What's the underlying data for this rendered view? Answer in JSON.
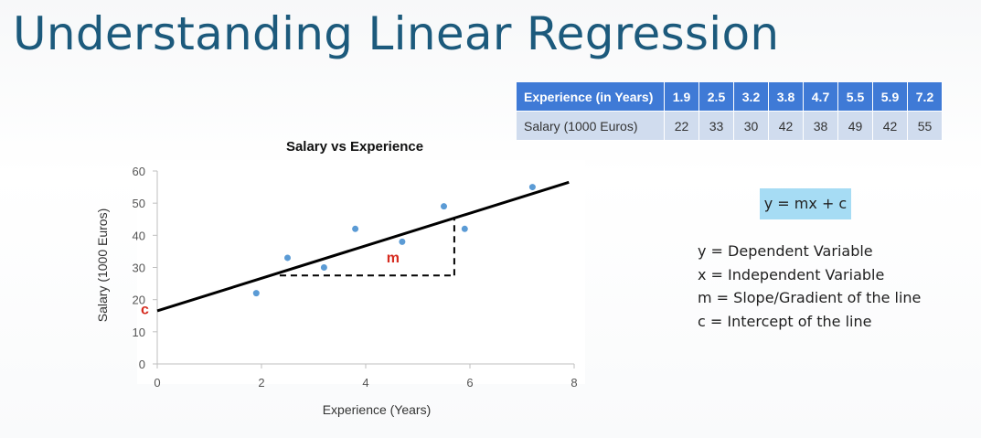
{
  "title": "Understanding Linear Regression",
  "table": {
    "row_headers": [
      "Experience (in Years)",
      "Salary (1000 Euros)"
    ],
    "experience": [
      "1.9",
      "2.5",
      "3.2",
      "3.8",
      "4.7",
      "5.5",
      "5.9",
      "7.2"
    ],
    "salary": [
      "22",
      "33",
      "30",
      "42",
      "38",
      "49",
      "42",
      "55"
    ]
  },
  "chart_data": {
    "type": "scatter",
    "title": "Salary vs Experience",
    "xlabel": "Experience (Years)",
    "ylabel": "Salary  (1000 Euros)",
    "xlim": [
      0,
      8
    ],
    "ylim": [
      0,
      60
    ],
    "x_ticks": [
      "0",
      "2",
      "4",
      "6",
      "8"
    ],
    "y_ticks": [
      "0",
      "10",
      "20",
      "30",
      "40",
      "50",
      "60"
    ],
    "points": [
      {
        "x": 1.9,
        "y": 22
      },
      {
        "x": 2.5,
        "y": 33
      },
      {
        "x": 3.2,
        "y": 30
      },
      {
        "x": 3.8,
        "y": 42
      },
      {
        "x": 4.7,
        "y": 38
      },
      {
        "x": 5.5,
        "y": 49
      },
      {
        "x": 5.9,
        "y": 42
      },
      {
        "x": 7.2,
        "y": 55
      }
    ],
    "regression_line": {
      "x_start": 0,
      "y_start": 16.5,
      "x_end": 7.9,
      "y_end": 56.5
    },
    "slope_triangle": {
      "x_start": 2.35,
      "x_end": 5.7,
      "y_base": 27.5
    },
    "annotations": {
      "slope_label": "m",
      "intercept_label": "c"
    },
    "grid": false,
    "colors": {
      "points": "#5b9bd5",
      "line": "#000000",
      "labels": "#d62b1f"
    }
  },
  "equation": "y = mx + c",
  "definitions": [
    "y = Dependent Variable",
    "x = Independent Variable",
    "m = Slope/Gradient of the line",
    "c = Intercept of the line"
  ]
}
